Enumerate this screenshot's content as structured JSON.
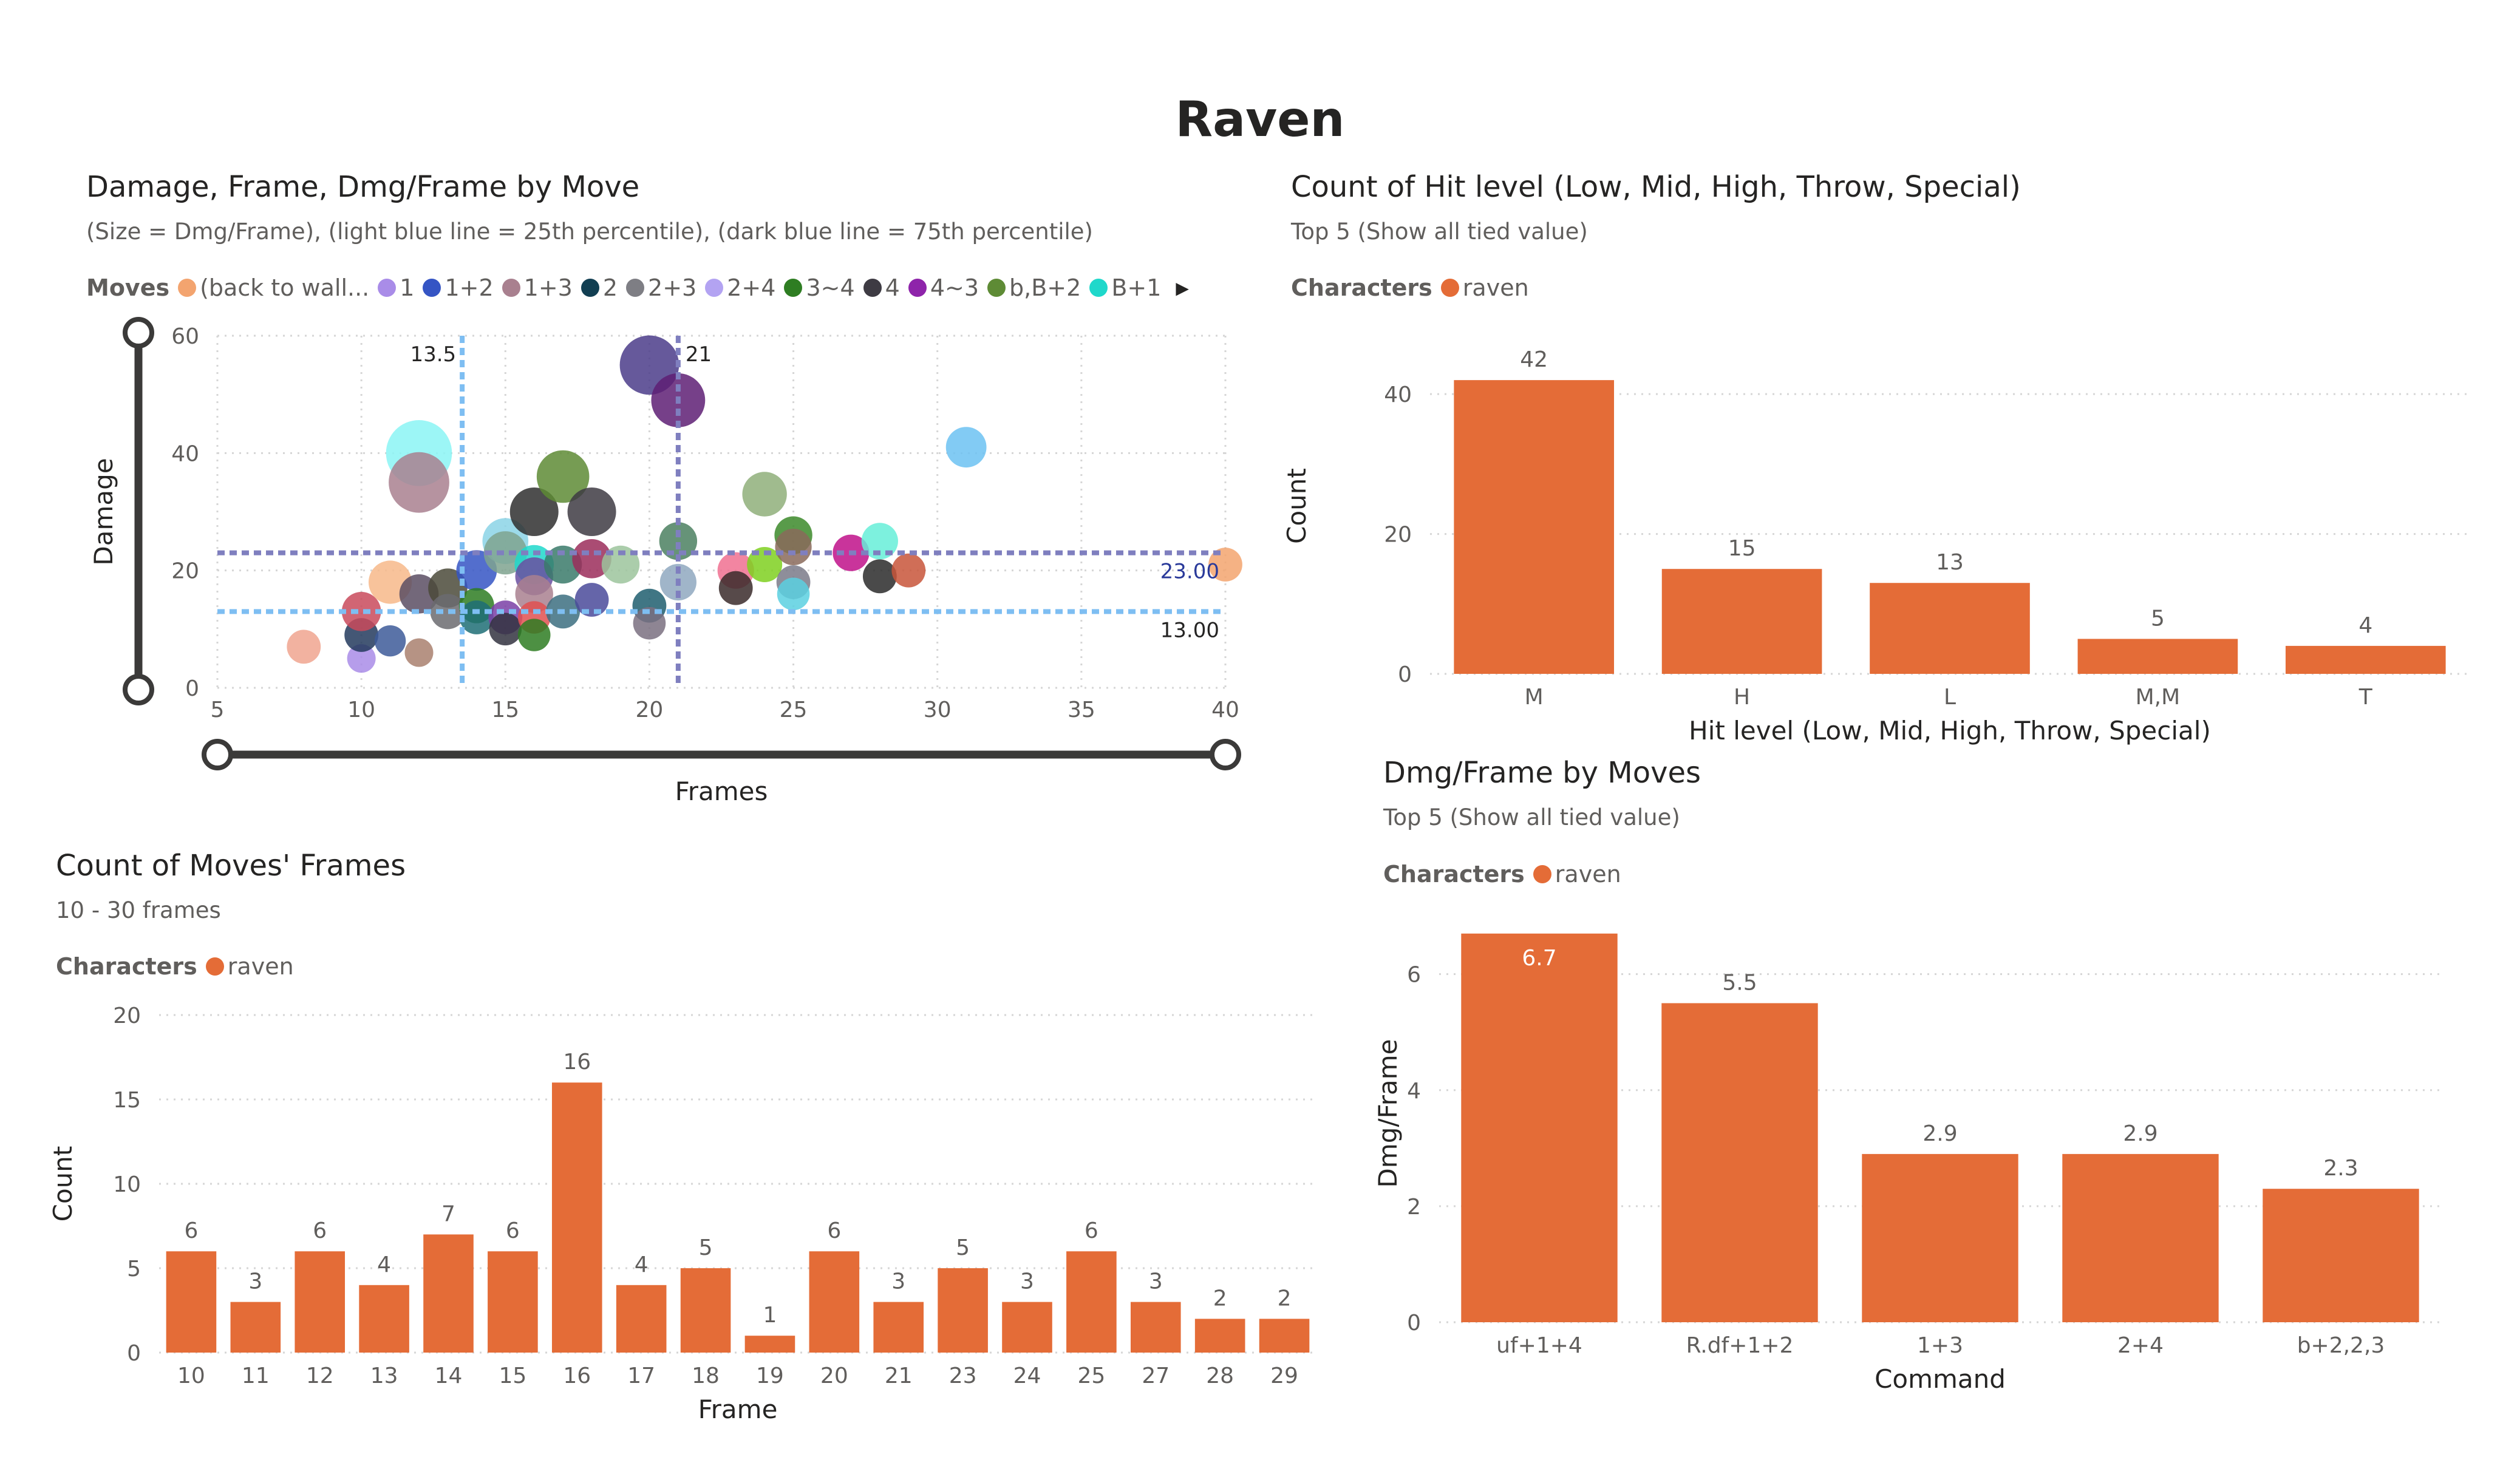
{
  "page": {
    "title": "Raven"
  },
  "scatter": {
    "title": "Damage, Frame, Dmg/Frame by Move",
    "subtitle": "(Size = Dmg/Frame), (light blue line = 25th percentile), (dark blue line = 75th percentile)",
    "legend_title": "Moves",
    "legend": [
      {
        "label": "(back to wall...",
        "color": "#F3A46F"
      },
      {
        "label": "1",
        "color": "#A98CE8"
      },
      {
        "label": "1+2",
        "color": "#3555C4"
      },
      {
        "label": "1+3",
        "color": "#A9808F"
      },
      {
        "label": "2",
        "color": "#123F52"
      },
      {
        "label": "2+3",
        "color": "#7E7E84"
      },
      {
        "label": "2+4",
        "color": "#B3A3F2"
      },
      {
        "label": "3~4",
        "color": "#2E7D22"
      },
      {
        "label": "4",
        "color": "#3E3B43"
      },
      {
        "label": "4~3",
        "color": "#8E24AA"
      },
      {
        "label": "b,B+2",
        "color": "#5E8B35"
      },
      {
        "label": "B+1",
        "color": "#1FD8CB"
      }
    ],
    "legend_more_icon": "triangle-right-icon",
    "zoom_slider_icon": "range-slider-handle-icon",
    "ref_labels": {
      "x25": "13.5",
      "x75": "21",
      "y75": "23.00",
      "y25": "13.00"
    }
  },
  "hitlevel": {
    "title": "Count of Hit level (Low, Mid, High, Throw, Special)",
    "subtitle": "Top 5 (Show all tied value)",
    "legend_title": "Characters",
    "legend_item": "raven"
  },
  "dmgframe": {
    "title": "Dmg/Frame by Moves",
    "subtitle": "Top 5 (Show all tied value)",
    "legend_title": "Characters",
    "legend_item": "raven"
  },
  "framecount": {
    "title": "Count of Moves' Frames",
    "subtitle": "10 - 30 frames",
    "legend_title": "Characters",
    "legend_item": "raven"
  },
  "colors": {
    "bar": "#E46C37",
    "grid": "#D6D6D6",
    "p25_line": "#7EBEF2",
    "p75_line": "#7F7FBF"
  },
  "chart_data": [
    {
      "type": "scatter",
      "title": "Damage, Frame, Dmg/Frame by Move",
      "xlabel": "Frames",
      "ylabel": "Damage",
      "xlim": [
        5,
        40
      ],
      "ylim": [
        0,
        60
      ],
      "xticks": [
        5,
        10,
        15,
        20,
        25,
        30,
        35,
        40
      ],
      "yticks": [
        0,
        20,
        40,
        60
      ],
      "grid": true,
      "ref_lines": {
        "x_p25": 13.5,
        "x_p75": 21,
        "y_p25": 13,
        "y_p75": 23
      },
      "points": [
        {
          "x": 8,
          "y": 7,
          "s": 0.9,
          "c": "#F0A58F"
        },
        {
          "x": 10,
          "y": 5,
          "s": 0.5,
          "c": "#A98CE8"
        },
        {
          "x": 10,
          "y": 9,
          "s": 0.9,
          "c": "#23395D"
        },
        {
          "x": 10,
          "y": 13,
          "s": 1.3,
          "c": "#C94A5C"
        },
        {
          "x": 11,
          "y": 8,
          "s": 0.7,
          "c": "#3D5A99"
        },
        {
          "x": 11,
          "y": 18,
          "s": 1.6,
          "c": "#F7B88A"
        },
        {
          "x": 12,
          "y": 40,
          "s": 3.3,
          "c": "#8BF5F5"
        },
        {
          "x": 12,
          "y": 35,
          "s": 2.9,
          "c": "#A9808F"
        },
        {
          "x": 12,
          "y": 16,
          "s": 1.3,
          "c": "#5B4E63"
        },
        {
          "x": 12,
          "y": 6,
          "s": 0.5,
          "c": "#A9806F"
        },
        {
          "x": 13,
          "y": 17,
          "s": 1.3,
          "c": "#4B4A3A"
        },
        {
          "x": 13,
          "y": 13,
          "s": 1.0,
          "c": "#6B6B70"
        },
        {
          "x": 14,
          "y": 20,
          "s": 1.4,
          "c": "#3555C4"
        },
        {
          "x": 14,
          "y": 14,
          "s": 1.0,
          "c": "#2E7D22"
        },
        {
          "x": 14,
          "y": 12,
          "s": 0.9,
          "c": "#1E6E75"
        },
        {
          "x": 15,
          "y": 25,
          "s": 1.8,
          "c": "#8BD3E6"
        },
        {
          "x": 15,
          "y": 23,
          "s": 1.6,
          "c": "#7FA38F"
        },
        {
          "x": 15,
          "y": 12,
          "s": 0.9,
          "c": "#7A3FA6"
        },
        {
          "x": 15,
          "y": 10,
          "s": 0.8,
          "c": "#333340"
        },
        {
          "x": 16,
          "y": 30,
          "s": 2.0,
          "c": "#2F2F2F"
        },
        {
          "x": 16,
          "y": 21,
          "s": 1.3,
          "c": "#1FD8CB"
        },
        {
          "x": 16,
          "y": 19,
          "s": 1.2,
          "c": "#6A4FA0"
        },
        {
          "x": 16,
          "y": 16,
          "s": 1.2,
          "c": "#A9808F"
        },
        {
          "x": 16,
          "y": 12,
          "s": 0.8,
          "c": "#E05050"
        },
        {
          "x": 16,
          "y": 9,
          "s": 0.8,
          "c": "#2E7D22"
        },
        {
          "x": 17,
          "y": 36,
          "s": 2.3,
          "c": "#5E8B35"
        },
        {
          "x": 17,
          "y": 21,
          "s": 1.2,
          "c": "#3A7A6A"
        },
        {
          "x": 17,
          "y": 13,
          "s": 0.9,
          "c": "#3C6E80"
        },
        {
          "x": 18,
          "y": 30,
          "s": 2.0,
          "c": "#3E3B43"
        },
        {
          "x": 18,
          "y": 22,
          "s": 1.3,
          "c": "#9B2D5A"
        },
        {
          "x": 18,
          "y": 15,
          "s": 0.9,
          "c": "#4A4A9A"
        },
        {
          "x": 19,
          "y": 21,
          "s": 1.2,
          "c": "#9CC49C"
        },
        {
          "x": 20,
          "y": 55,
          "s": 2.8,
          "c": "#4B3C8A"
        },
        {
          "x": 20,
          "y": 14,
          "s": 0.9,
          "c": "#1E5E6E"
        },
        {
          "x": 20,
          "y": 11,
          "s": 0.8,
          "c": "#7A7080"
        },
        {
          "x": 21,
          "y": 49,
          "s": 2.4,
          "c": "#5E1E74"
        },
        {
          "x": 21,
          "y": 25,
          "s": 1.2,
          "c": "#4B8060"
        },
        {
          "x": 21,
          "y": 18,
          "s": 1.1,
          "c": "#8FA8C0"
        },
        {
          "x": 23,
          "y": 20,
          "s": 1.1,
          "c": "#F07090"
        },
        {
          "x": 23,
          "y": 17,
          "s": 0.9,
          "c": "#3A2A2A"
        },
        {
          "x": 24,
          "y": 33,
          "s": 1.7,
          "c": "#8FAF7A"
        },
        {
          "x": 24,
          "y": 21,
          "s": 1.0,
          "c": "#7FD020"
        },
        {
          "x": 25,
          "y": 26,
          "s": 1.2,
          "c": "#3C8A2A"
        },
        {
          "x": 25,
          "y": 24,
          "s": 1.1,
          "c": "#8A6A5A"
        },
        {
          "x": 25,
          "y": 18,
          "s": 0.9,
          "c": "#7A7A88"
        },
        {
          "x": 25,
          "y": 16,
          "s": 0.8,
          "c": "#5AD0E0"
        },
        {
          "x": 27,
          "y": 23,
          "s": 1.1,
          "c": "#C0108A"
        },
        {
          "x": 28,
          "y": 25,
          "s": 1.1,
          "c": "#66EED8"
        },
        {
          "x": 28,
          "y": 19,
          "s": 0.9,
          "c": "#2A2A2A"
        },
        {
          "x": 29,
          "y": 20,
          "s": 0.9,
          "c": "#C8553A"
        },
        {
          "x": 31,
          "y": 41,
          "s": 1.4,
          "c": "#6CC2F2"
        },
        {
          "x": 40,
          "y": 21,
          "s": 0.9,
          "c": "#F3A46F"
        }
      ]
    },
    {
      "type": "bar",
      "title": "Count of Hit level (Low, Mid, High, Throw, Special)",
      "xlabel": "Hit level (Low, Mid, High, Throw, Special)",
      "ylabel": "Count",
      "categories": [
        "M",
        "H",
        "L",
        "M,M",
        "T"
      ],
      "series": [
        {
          "name": "raven",
          "values": [
            42,
            15,
            13,
            5,
            4
          ]
        }
      ],
      "ylim": [
        0,
        48
      ],
      "yticks": [
        0,
        20,
        40
      ],
      "grid": true,
      "legend": "top-left"
    },
    {
      "type": "bar",
      "title": "Dmg/Frame by Moves",
      "xlabel": "Command",
      "ylabel": "Dmg/Frame",
      "categories": [
        "uf+1+4",
        "R.df+1+2",
        "1+3",
        "2+4",
        "b+2,2,3"
      ],
      "series": [
        {
          "name": "raven",
          "values": [
            6.7,
            5.5,
            2.9,
            2.9,
            2.3
          ]
        }
      ],
      "ylim": [
        0,
        7.2
      ],
      "yticks": [
        0,
        2,
        4,
        6
      ],
      "grid": true,
      "legend": "top-left"
    },
    {
      "type": "bar",
      "title": "Count of Moves' Frames",
      "xlabel": "Frame",
      "ylabel": "Count",
      "categories": [
        "10",
        "11",
        "12",
        "13",
        "14",
        "15",
        "16",
        "17",
        "18",
        "19",
        "20",
        "21",
        "23",
        "24",
        "25",
        "27",
        "28",
        "29"
      ],
      "series": [
        {
          "name": "raven",
          "values": [
            6,
            3,
            6,
            4,
            7,
            6,
            16,
            4,
            5,
            1,
            6,
            3,
            5,
            3,
            6,
            3,
            2,
            2
          ]
        }
      ],
      "ylim": [
        0,
        20
      ],
      "yticks": [
        0,
        5,
        10,
        15,
        20
      ],
      "grid": true,
      "legend": "top-left"
    }
  ]
}
